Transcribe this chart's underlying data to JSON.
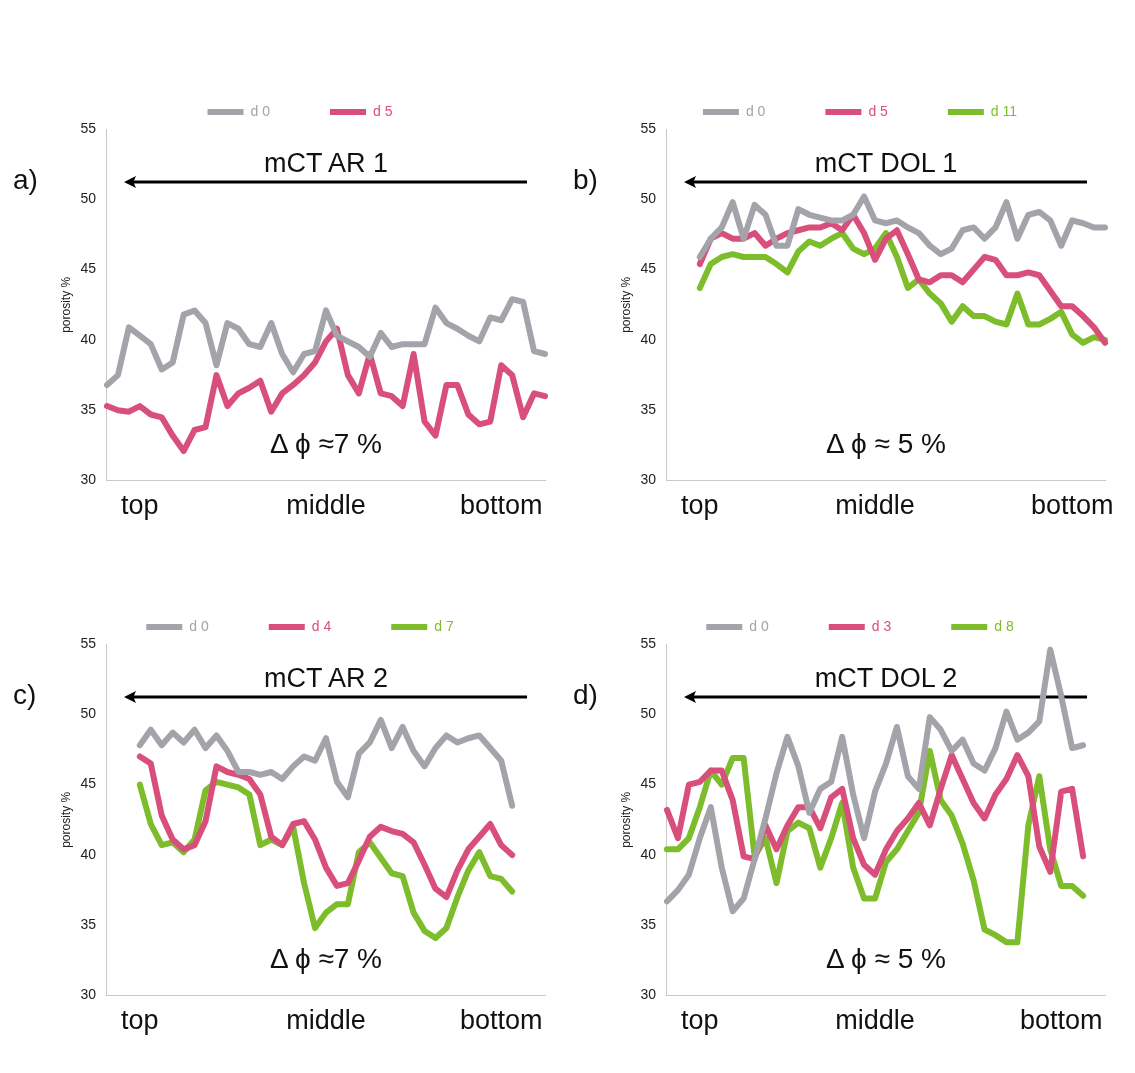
{
  "chart_data": [
    {
      "type": "line",
      "title": "mCT AR 1",
      "ylabel": "porosity %",
      "ylim": [
        30,
        55
      ],
      "yticks": [
        30,
        35,
        40,
        45,
        50,
        55
      ],
      "grid": false,
      "legend": "top",
      "annotations": [
        "a)",
        "Δ ϕ ≈7 %"
      ],
      "categories": [
        null,
        null,
        null,
        "top",
        null,
        null,
        null,
        null,
        null,
        null,
        null,
        null,
        null,
        null,
        null,
        null,
        null,
        null,
        null,
        null,
        "middle",
        null,
        null,
        null,
        null,
        null,
        null,
        null,
        null,
        null,
        null,
        null,
        null,
        null,
        null,
        null,
        "bottom",
        null,
        null,
        null,
        null
      ],
      "series": [
        {
          "name": "d 0",
          "color": "#a3a3aa",
          "values": [
            36.8,
            37.5,
            40.9,
            40.3,
            39.7,
            37.9,
            38.4,
            41.8,
            42.1,
            41.2,
            38.2,
            41.2,
            40.8,
            39.7,
            39.5,
            41.2,
            39.0,
            37.7,
            39.0,
            39.2,
            42.1,
            40.3,
            39.9,
            39.5,
            38.8,
            40.5,
            39.5,
            39.7,
            39.7,
            39.7,
            42.3,
            41.2,
            40.8,
            40.3,
            39.9,
            41.6,
            41.4,
            42.9,
            42.7,
            39.2,
            39.0
          ]
        },
        {
          "name": "d 5",
          "color": "#d94f7c",
          "values": [
            35.3,
            35.0,
            34.9,
            35.3,
            34.7,
            34.5,
            33.2,
            32.1,
            33.6,
            33.8,
            37.5,
            35.3,
            36.2,
            36.6,
            37.1,
            34.9,
            36.2,
            36.8,
            37.5,
            38.4,
            39.9,
            40.8,
            37.5,
            36.2,
            39.0,
            36.2,
            36.0,
            35.3,
            39.0,
            34.2,
            33.2,
            36.8,
            36.8,
            34.7,
            34.0,
            34.2,
            38.2,
            37.5,
            34.5,
            36.2,
            36.0
          ]
        }
      ]
    },
    {
      "type": "line",
      "title": "mCT DOL 1",
      "ylabel": "porosity %",
      "ylim": [
        30,
        55
      ],
      "yticks": [
        30,
        35,
        40,
        45,
        50,
        55
      ],
      "grid": false,
      "legend": "top",
      "annotations": [
        "b)",
        "Δ ϕ ≈ 5 %"
      ],
      "categories": [
        null,
        null,
        null,
        "top",
        null,
        null,
        null,
        null,
        null,
        null,
        null,
        null,
        null,
        null,
        null,
        null,
        null,
        null,
        null,
        "middle",
        null,
        null,
        null,
        null,
        null,
        null,
        null,
        null,
        null,
        null,
        null,
        null,
        null,
        null,
        null,
        null,
        null,
        "bottom",
        null,
        null,
        null
      ],
      "series": [
        {
          "name": "d 0",
          "color": "#a3a3aa",
          "values": [
            null,
            null,
            null,
            45.9,
            47.2,
            48.0,
            49.8,
            47.2,
            49.6,
            48.9,
            46.7,
            46.7,
            49.3,
            48.9,
            48.7,
            48.5,
            48.5,
            48.9,
            50.2,
            48.5,
            48.3,
            48.5,
            48.0,
            47.6,
            46.7,
            46.1,
            46.5,
            47.8,
            48.0,
            47.2,
            48.0,
            49.8,
            47.2,
            48.9,
            49.1,
            48.5,
            46.7,
            48.5,
            48.3,
            48.0,
            48.0
          ]
        },
        {
          "name": "d 5",
          "color": "#d94f7c",
          "values": [
            null,
            null,
            null,
            45.4,
            47.2,
            47.6,
            47.2,
            47.2,
            47.6,
            46.7,
            47.2,
            47.6,
            47.8,
            48.0,
            48.0,
            48.3,
            47.8,
            48.9,
            47.6,
            45.7,
            47.2,
            47.8,
            46.1,
            44.3,
            44.1,
            44.6,
            44.6,
            44.1,
            45.0,
            45.9,
            45.7,
            44.6,
            44.6,
            44.8,
            44.6,
            43.5,
            42.4,
            42.4,
            41.7,
            40.9,
            39.8
          ]
        },
        {
          "name": "d 11",
          "color": "#7dbd2b",
          "values": [
            null,
            null,
            null,
            43.7,
            45.4,
            45.9,
            46.1,
            45.9,
            45.9,
            45.9,
            45.4,
            44.8,
            46.3,
            47.0,
            46.7,
            47.2,
            47.6,
            46.5,
            46.1,
            46.5,
            47.6,
            45.9,
            43.7,
            44.3,
            43.3,
            42.6,
            41.3,
            42.4,
            41.7,
            41.7,
            41.3,
            41.1,
            43.3,
            41.1,
            41.1,
            41.5,
            42.0,
            40.4,
            39.8,
            40.2,
            40.0
          ]
        }
      ]
    },
    {
      "type": "line",
      "title": "mCT AR 2",
      "ylabel": "porosity %",
      "ylim": [
        30,
        55
      ],
      "yticks": [
        30,
        35,
        40,
        45,
        50,
        55
      ],
      "grid": false,
      "legend": "top",
      "annotations": [
        "c)",
        "Δ ϕ ≈7 %"
      ],
      "categories": [
        null,
        null,
        null,
        "top",
        null,
        null,
        null,
        null,
        null,
        null,
        null,
        null,
        null,
        null,
        null,
        null,
        null,
        null,
        null,
        null,
        "middle",
        null,
        null,
        null,
        null,
        null,
        null,
        null,
        null,
        null,
        null,
        null,
        null,
        null,
        null,
        null,
        "bottom",
        null,
        null,
        null,
        null
      ],
      "series": [
        {
          "name": "d 0",
          "color": "#a3a3aa",
          "values": [
            null,
            null,
            null,
            47.8,
            48.9,
            47.8,
            48.7,
            48.0,
            48.9,
            47.6,
            48.5,
            47.4,
            45.9,
            45.9,
            45.7,
            45.9,
            45.4,
            46.3,
            47.0,
            46.7,
            48.3,
            45.2,
            44.1,
            47.2,
            48.0,
            49.6,
            47.6,
            49.1,
            47.4,
            46.3,
            47.6,
            48.5,
            48.0,
            48.3,
            48.5,
            47.6,
            46.7,
            43.5,
            null,
            null,
            null
          ]
        },
        {
          "name": "d 4",
          "color": "#d94f7c",
          "values": [
            null,
            null,
            null,
            47.0,
            46.5,
            42.8,
            41.1,
            40.4,
            40.7,
            42.4,
            46.3,
            45.9,
            45.7,
            45.4,
            44.3,
            41.3,
            40.7,
            42.2,
            42.4,
            41.1,
            39.1,
            37.8,
            38.0,
            39.6,
            41.3,
            42.0,
            41.7,
            41.5,
            40.9,
            39.3,
            37.6,
            37.0,
            38.9,
            40.4,
            41.3,
            42.2,
            40.7,
            40.0,
            null,
            null,
            null
          ]
        },
        {
          "name": "d 7",
          "color": "#7dbd2b",
          "values": [
            null,
            null,
            null,
            45.0,
            42.2,
            40.7,
            40.9,
            40.2,
            41.1,
            44.6,
            45.2,
            45.0,
            44.8,
            44.3,
            40.7,
            41.1,
            40.7,
            42.0,
            38.0,
            34.8,
            35.9,
            36.5,
            36.5,
            40.2,
            40.9,
            39.8,
            38.7,
            38.5,
            35.9,
            34.6,
            34.1,
            34.8,
            37.0,
            38.9,
            40.2,
            38.5,
            38.3,
            37.4,
            null,
            null,
            null
          ]
        }
      ]
    },
    {
      "type": "line",
      "title": "mCT DOL 2",
      "ylabel": "porosity %",
      "ylim": [
        30,
        55
      ],
      "yticks": [
        30,
        35,
        40,
        45,
        50,
        55
      ],
      "grid": false,
      "legend": "top",
      "annotations": [
        "d)",
        "Δ ϕ ≈ 5 %"
      ],
      "categories": [
        null,
        null,
        null,
        "top",
        null,
        null,
        null,
        null,
        null,
        null,
        null,
        null,
        null,
        null,
        null,
        null,
        null,
        null,
        null,
        "middle",
        null,
        null,
        null,
        null,
        null,
        null,
        null,
        null,
        null,
        null,
        null,
        null,
        null,
        null,
        null,
        null,
        "bottom",
        null,
        null,
        null,
        null
      ],
      "series": [
        {
          "name": "d 0",
          "color": "#a3a3aa",
          "values": [
            36.7,
            37.5,
            38.6,
            41.2,
            43.4,
            39.1,
            36.0,
            36.9,
            39.7,
            42.6,
            45.8,
            48.4,
            46.3,
            43.0,
            44.7,
            45.2,
            48.4,
            44.3,
            41.2,
            44.5,
            46.5,
            49.1,
            45.6,
            44.7,
            49.8,
            48.9,
            47.4,
            48.2,
            46.5,
            46.0,
            47.6,
            50.2,
            48.2,
            48.7,
            49.5,
            54.6,
            51.3,
            47.6,
            47.8,
            null,
            null
          ]
        },
        {
          "name": "d 3",
          "color": "#d94f7c",
          "values": [
            43.2,
            41.2,
            45.0,
            45.2,
            46.0,
            46.0,
            43.9,
            39.9,
            39.7,
            42.1,
            40.4,
            42.1,
            43.4,
            43.4,
            41.9,
            44.1,
            44.7,
            41.2,
            39.3,
            38.6,
            40.4,
            41.7,
            42.6,
            43.7,
            42.1,
            44.7,
            47.1,
            45.4,
            43.7,
            42.6,
            44.3,
            45.4,
            47.1,
            45.6,
            40.6,
            38.8,
            44.5,
            44.7,
            39.9,
            null,
            null
          ]
        },
        {
          "name": "d 8",
          "color": "#7dbd2b",
          "values": [
            40.4,
            40.4,
            41.2,
            43.4,
            46.0,
            45.0,
            46.9,
            46.9,
            39.9,
            41.2,
            38.0,
            41.7,
            42.3,
            41.9,
            39.1,
            41.2,
            43.7,
            39.1,
            36.9,
            36.9,
            39.5,
            40.4,
            41.7,
            43.0,
            47.4,
            43.9,
            42.8,
            40.8,
            38.2,
            34.7,
            34.3,
            33.8,
            33.8,
            42.1,
            45.6,
            40.4,
            37.8,
            37.8,
            37.1,
            null,
            null
          ]
        }
      ]
    }
  ]
}
